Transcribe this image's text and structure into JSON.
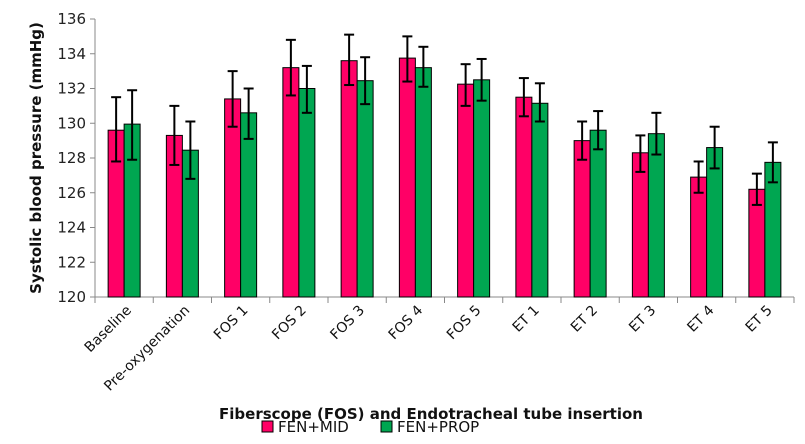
{
  "chart_data": {
    "type": "bar",
    "title": "",
    "xlabel": "Fiberscope (FOS) and Endotracheal tube insertion",
    "ylabel": "Systolic blood pressure (mmHg)",
    "ylim": [
      120,
      136
    ],
    "yticks": [
      120,
      122,
      124,
      126,
      128,
      130,
      132,
      134,
      136
    ],
    "grid": false,
    "legend_position": "bottom-center",
    "categories": [
      "Baseline",
      "Pre-oxygenation",
      "FOS 1",
      "FOS 2",
      "FOS 3",
      "FOS 4",
      "FOS 5",
      "ET 1",
      "ET 2",
      "ET 3",
      "ET 4",
      "ET 5"
    ],
    "series": [
      {
        "name": "FEN+MID",
        "color": "#ff0066",
        "values": [
          129.6,
          129.3,
          131.4,
          133.2,
          133.6,
          133.75,
          132.25,
          131.5,
          129.0,
          128.3,
          126.9,
          126.2
        ],
        "error_low": [
          127.8,
          127.6,
          129.8,
          131.6,
          132.2,
          132.4,
          131.0,
          130.4,
          127.9,
          127.2,
          126.0,
          125.3
        ],
        "error_high": [
          131.5,
          131.0,
          133.0,
          134.8,
          135.1,
          135.0,
          133.4,
          132.6,
          130.1,
          129.3,
          127.8,
          127.1
        ]
      },
      {
        "name": "FEN+PROP",
        "color": "#00a651",
        "values": [
          129.95,
          128.45,
          130.6,
          132.0,
          132.45,
          133.2,
          132.5,
          131.15,
          129.6,
          129.4,
          128.6,
          127.75
        ],
        "error_low": [
          127.9,
          126.8,
          129.1,
          130.6,
          131.1,
          132.1,
          131.3,
          130.1,
          128.5,
          128.2,
          127.4,
          126.6
        ],
        "error_high": [
          131.9,
          130.1,
          132.0,
          133.3,
          133.8,
          134.4,
          133.7,
          132.3,
          130.7,
          130.6,
          129.8,
          128.9
        ]
      }
    ]
  }
}
